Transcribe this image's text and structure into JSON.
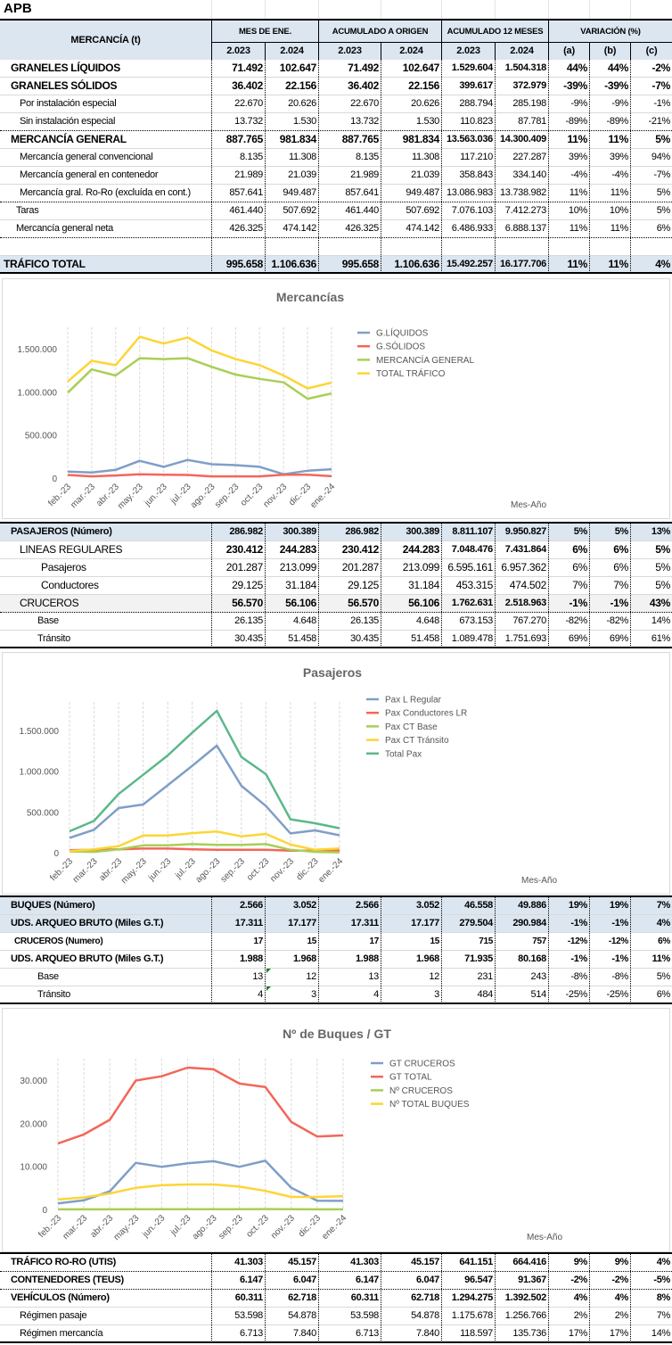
{
  "title": "APB",
  "header": {
    "mercancia": "MERCANCÍA (t)",
    "groups": [
      "MES DE ENE.",
      "ACUMULADO  A  ORIGEN",
      "ACUMULADO 12 MESES",
      "VARIACIÓN (%)"
    ],
    "years": [
      "2.023",
      "2.024",
      "2.023",
      "2.024",
      "2.023",
      "2.024",
      "(a)",
      "(b)",
      "(c)"
    ]
  },
  "mercancias": [
    {
      "label": "GRANELES LÍQUIDOS",
      "values": [
        "71.492",
        "102.647",
        "71.492",
        "102.647",
        "1.529.604",
        "1.504.318",
        "44%",
        "44%",
        "-2%"
      ]
    },
    {
      "label": "GRANELES SÓLIDOS",
      "values": [
        "36.402",
        "22.156",
        "36.402",
        "22.156",
        "399.617",
        "372.979",
        "-39%",
        "-39%",
        "-7%"
      ]
    },
    {
      "label": "Por instalación especial",
      "values": [
        "22.670",
        "20.626",
        "22.670",
        "20.626",
        "288.794",
        "285.198",
        "-9%",
        "-9%",
        "-1%"
      ]
    },
    {
      "label": "Sin instalación especial",
      "values": [
        "13.732",
        "1.530",
        "13.732",
        "1.530",
        "110.823",
        "87.781",
        "-89%",
        "-89%",
        "-21%"
      ]
    },
    {
      "label": "MERCANCÍA GENERAL",
      "values": [
        "887.765",
        "981.834",
        "887.765",
        "981.834",
        "13.563.036",
        "14.300.409",
        "11%",
        "11%",
        "5%"
      ]
    },
    {
      "label": "Mercancía general convencional",
      "values": [
        "8.135",
        "11.308",
        "8.135",
        "11.308",
        "117.210",
        "227.287",
        "39%",
        "39%",
        "94%"
      ]
    },
    {
      "label": "Mercancía general en contenedor",
      "values": [
        "21.989",
        "21.039",
        "21.989",
        "21.039",
        "358.843",
        "334.140",
        "-4%",
        "-4%",
        "-7%"
      ]
    },
    {
      "label": "Mercancía gral. Ro-Ro (excluída en cont.)",
      "values": [
        "857.641",
        "949.487",
        "857.641",
        "949.487",
        "13.086.983",
        "13.738.982",
        "11%",
        "11%",
        "5%"
      ]
    },
    {
      "label": "Taras",
      "values": [
        "461.440",
        "507.692",
        "461.440",
        "507.692",
        "7.076.103",
        "7.412.273",
        "10%",
        "10%",
        "5%"
      ]
    },
    {
      "label": "Mercancía general neta",
      "values": [
        "426.325",
        "474.142",
        "426.325",
        "474.142",
        "6.486.933",
        "6.888.137",
        "11%",
        "11%",
        "6%"
      ]
    },
    {
      "label": "",
      "values": [
        "",
        "",
        "",
        "",
        "",
        "",
        "",
        "",
        ""
      ]
    },
    {
      "label": "TRÁFICO TOTAL",
      "values": [
        "995.658",
        "1.106.636",
        "995.658",
        "1.106.636",
        "15.492.257",
        "16.177.706",
        "11%",
        "11%",
        "4%"
      ]
    }
  ],
  "pasajeros": [
    {
      "label": "PASAJEROS (Número)",
      "values": [
        "286.982",
        "300.389",
        "286.982",
        "300.389",
        "8.811.107",
        "9.950.827",
        "5%",
        "5%",
        "13%"
      ]
    },
    {
      "label": "LINEAS REGULARES",
      "values": [
        "230.412",
        "244.283",
        "230.412",
        "244.283",
        "7.048.476",
        "7.431.864",
        "6%",
        "6%",
        "5%"
      ]
    },
    {
      "label": "Pasajeros",
      "values": [
        "201.287",
        "213.099",
        "201.287",
        "213.099",
        "6.595.161",
        "6.957.362",
        "6%",
        "6%",
        "5%"
      ]
    },
    {
      "label": "Conductores",
      "values": [
        "29.125",
        "31.184",
        "29.125",
        "31.184",
        "453.315",
        "474.502",
        "7%",
        "7%",
        "5%"
      ]
    },
    {
      "label": "CRUCEROS",
      "values": [
        "56.570",
        "56.106",
        "56.570",
        "56.106",
        "1.762.631",
        "2.518.963",
        "-1%",
        "-1%",
        "43%"
      ]
    },
    {
      "label": "Base",
      "values": [
        "26.135",
        "4.648",
        "26.135",
        "4.648",
        "673.153",
        "767.270",
        "-82%",
        "-82%",
        "14%"
      ]
    },
    {
      "label": "Tránsito",
      "values": [
        "30.435",
        "51.458",
        "30.435",
        "51.458",
        "1.089.478",
        "1.751.693",
        "69%",
        "69%",
        "61%"
      ]
    }
  ],
  "buques": [
    {
      "label": "BUQUES (Número)",
      "values": [
        "2.566",
        "3.052",
        "2.566",
        "3.052",
        "46.558",
        "49.886",
        "19%",
        "19%",
        "7%"
      ]
    },
    {
      "label": "UDS. ARQUEO BRUTO  (Miles G.T.)",
      "values": [
        "17.311",
        "17.177",
        "17.311",
        "17.177",
        "279.504",
        "290.984",
        "-1%",
        "-1%",
        "4%"
      ]
    },
    {
      "label": "CRUCEROS (Numero)",
      "values": [
        "17",
        "15",
        "17",
        "15",
        "715",
        "757",
        "-12%",
        "-12%",
        "6%"
      ]
    },
    {
      "label": "UDS. ARQUEO BRUTO  (Miles G.T.)",
      "values": [
        "1.988",
        "1.968",
        "1.988",
        "1.968",
        "71.935",
        "80.168",
        "-1%",
        "-1%",
        "11%"
      ]
    },
    {
      "label": "Base",
      "values": [
        "13",
        "12",
        "13",
        "12",
        "231",
        "243",
        "-8%",
        "-8%",
        "5%"
      ]
    },
    {
      "label": "Tránsito",
      "values": [
        "4",
        "3",
        "4",
        "3",
        "484",
        "514",
        "-25%",
        "-25%",
        "6%"
      ]
    }
  ],
  "otros": [
    {
      "label": "TRÁFICO RO-RO (UTIS)",
      "values": [
        "41.303",
        "45.157",
        "41.303",
        "45.157",
        "641.151",
        "664.416",
        "9%",
        "9%",
        "4%"
      ]
    },
    {
      "label": "CONTENEDORES (TEUS)",
      "values": [
        "6.147",
        "6.047",
        "6.147",
        "6.047",
        "96.547",
        "91.367",
        "-2%",
        "-2%",
        "-5%"
      ]
    },
    {
      "label": "VEHÍCULOS (Número)",
      "values": [
        "60.311",
        "62.718",
        "60.311",
        "62.718",
        "1.294.275",
        "1.392.502",
        "4%",
        "4%",
        "8%"
      ]
    },
    {
      "label": "Régimen pasaje",
      "values": [
        "53.598",
        "54.878",
        "53.598",
        "54.878",
        "1.175.678",
        "1.256.766",
        "2%",
        "2%",
        "7%"
      ]
    },
    {
      "label": "Régimen  mercancía",
      "values": [
        "6.713",
        "7.840",
        "6.713",
        "7.840",
        "118.597",
        "135.736",
        "17%",
        "17%",
        "14%"
      ]
    }
  ],
  "chart_data": [
    {
      "type": "line",
      "title": "Mercancías",
      "xlabel": "Mes-Año",
      "ylabel": "",
      "categories": [
        "feb.-23",
        "mar.-23",
        "abr.-23",
        "may.-23",
        "jun.-23",
        "jul.-23",
        "ago.-23",
        "sep.-23",
        "oct.-23",
        "nov.-23",
        "dic.-23",
        "ene.-24"
      ],
      "ylim": [
        0,
        1750000
      ],
      "yticks": [
        0,
        500000,
        1000000,
        1500000
      ],
      "ytick_labels": [
        "0",
        "500.000",
        "1.000.000",
        "1.500.000"
      ],
      "grid": "vertical dashed",
      "legend": "right",
      "series": [
        {
          "name": "G.LÍQUIDOS",
          "color": "#7f9ec8",
          "values": [
            75000,
            65000,
            95000,
            200000,
            130000,
            210000,
            160000,
            150000,
            130000,
            45000,
            85000,
            102647
          ]
        },
        {
          "name": "G.SÓLIDOS",
          "color": "#f4665a",
          "values": [
            36000,
            20000,
            30000,
            45000,
            38000,
            36000,
            20000,
            20000,
            20000,
            38000,
            38000,
            22156
          ]
        },
        {
          "name": "MERCANCÍA GENERAL",
          "color": "#a9cf54",
          "values": [
            990000,
            1260000,
            1190000,
            1390000,
            1380000,
            1390000,
            1290000,
            1200000,
            1150000,
            1110000,
            920000,
            981834
          ]
        },
        {
          "name": "TOTAL TRÁFICO",
          "color": "#fdd535",
          "values": [
            1120000,
            1360000,
            1310000,
            1640000,
            1560000,
            1630000,
            1480000,
            1380000,
            1310000,
            1190000,
            1040000,
            1106636
          ]
        }
      ]
    },
    {
      "type": "line",
      "title": "Pasajeros",
      "xlabel": "Mes-Año",
      "ylabel": "",
      "categories": [
        "feb.-23",
        "mar.-23",
        "abr.-23",
        "may.-23",
        "jun.-23",
        "jul.-23",
        "ago.-23",
        "sep.-23",
        "oct.-23",
        "nov.-23",
        "dic.-23",
        "ene.-24"
      ],
      "ylim": [
        0,
        1850000
      ],
      "yticks": [
        0,
        500000,
        1000000,
        1500000
      ],
      "ytick_labels": [
        "0",
        "500.000",
        "1.000.000",
        "1.500.000"
      ],
      "grid": "vertical dashed",
      "legend": "right",
      "series": [
        {
          "name": "Pax L Regular",
          "color": "#7f9ec8",
          "values": [
            182000,
            281000,
            547000,
            591000,
            828000,
            1066000,
            1314000,
            821000,
            573000,
            237000,
            274000,
            213099
          ]
        },
        {
          "name": "Pax Conductores LR",
          "color": "#f4665a",
          "values": [
            30000,
            35000,
            40000,
            50000,
            50000,
            40000,
            35000,
            35000,
            35000,
            25000,
            25000,
            31184
          ]
        },
        {
          "name": "Pax CT Base",
          "color": "#a9cf54",
          "values": [
            15000,
            10000,
            40000,
            90000,
            90000,
            105000,
            95000,
            95000,
            105000,
            35000,
            10000,
            4648
          ]
        },
        {
          "name": "Pax CT Tránsito",
          "color": "#fdd535",
          "values": [
            20000,
            40000,
            80000,
            210000,
            210000,
            240000,
            260000,
            200000,
            230000,
            100000,
            35000,
            51458
          ]
        },
        {
          "name": "Total Pax",
          "color": "#5cb88a",
          "values": [
            263000,
            390000,
            720000,
            956000,
            1193000,
            1474000,
            1741000,
            1175000,
            963000,
            409000,
            361000,
            300389
          ]
        }
      ]
    },
    {
      "type": "line",
      "title": "Nº de Buques / GT",
      "xlabel": "Mes-Año",
      "ylabel": "",
      "categories": [
        "feb.-23",
        "mar.-23",
        "abr.-23",
        "may.-23",
        "jun.-23",
        "jul.-23",
        "ago.-23",
        "sep.-23",
        "oct.-23",
        "nov.-23",
        "dic.-23",
        "ene.-24"
      ],
      "ylim": [
        0,
        35000
      ],
      "yticks": [
        0,
        10000,
        20000,
        30000
      ],
      "ytick_labels": [
        "0",
        "10.000",
        "20.000",
        "30.000"
      ],
      "grid": "vertical dashed",
      "legend": "right",
      "series": [
        {
          "name": "GT CRUCEROS",
          "color": "#7f9ec8",
          "values": [
            1400,
            2100,
            4200,
            10800,
            9900,
            10700,
            11200,
            9900,
            11300,
            5000,
            2000,
            1988
          ]
        },
        {
          "name": "GT TOTAL",
          "color": "#f4665a",
          "values": [
            15300,
            17400,
            20800,
            29900,
            30900,
            32900,
            32500,
            29200,
            28400,
            20300,
            16900,
            17177
          ]
        },
        {
          "name": "Nº CRUCEROS",
          "color": "#a9cf54",
          "values": [
            20,
            20,
            25,
            60,
            60,
            70,
            60,
            60,
            80,
            40,
            15,
            15
          ]
        },
        {
          "name": "Nº TOTAL BUQUES",
          "color": "#fdd535",
          "values": [
            2300,
            2800,
            3700,
            5000,
            5600,
            5800,
            5800,
            5300,
            4300,
            2900,
            2900,
            3052
          ]
        }
      ]
    }
  ]
}
